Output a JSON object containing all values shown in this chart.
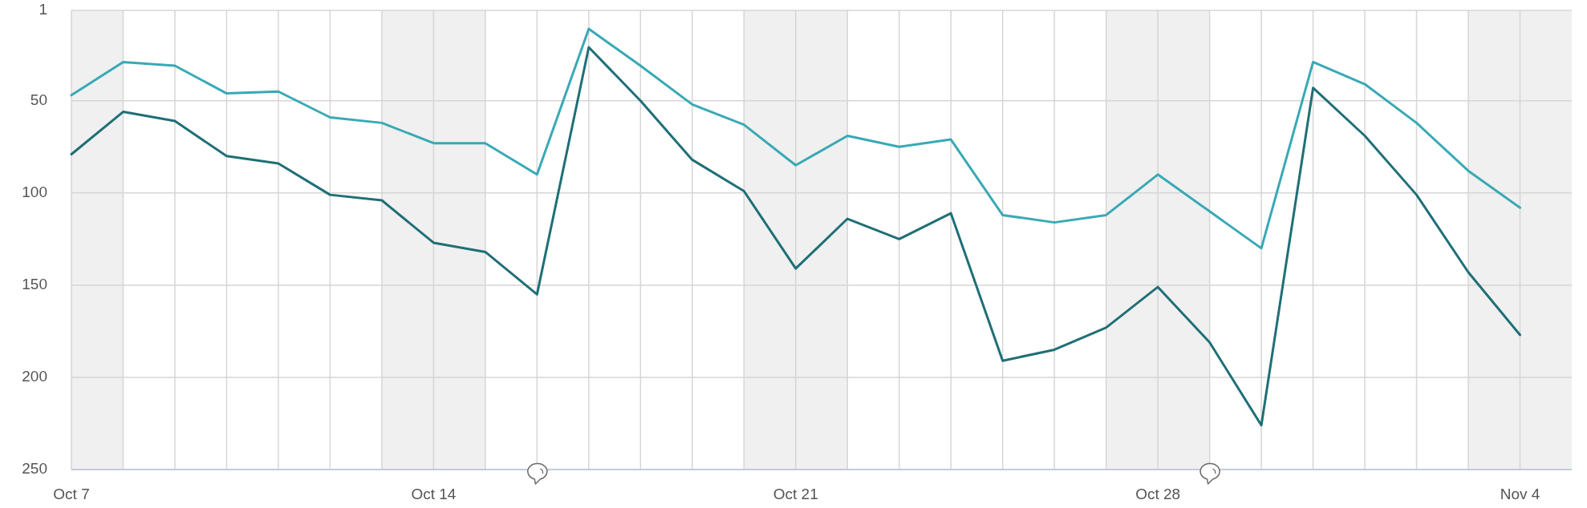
{
  "chart_data": {
    "type": "line",
    "x": [
      "--10-07",
      "--10-08",
      "--10-09",
      "--10-10",
      "--10-11",
      "--10-12",
      "--10-13",
      "--10-14",
      "--10-15",
      "--10-16",
      "--10-17",
      "--10-18",
      "--10-19",
      "--10-20",
      "--10-21",
      "--10-22",
      "--10-23",
      "--10-24",
      "--10-25",
      "--10-26",
      "--10-27",
      "--10-28",
      "--10-29",
      "--10-30",
      "--10-31",
      "--11-01",
      "--11-02",
      "--11-03",
      "--11-04"
    ],
    "series": [
      {
        "color": "#39a9b5",
        "values": [
          47,
          29,
          31,
          46,
          45,
          59,
          62,
          73,
          73,
          90,
          11,
          31,
          52,
          63,
          85,
          69,
          75,
          71,
          112,
          116,
          112,
          90,
          110,
          130,
          29,
          41,
          62,
          88,
          108
        ]
      },
      {
        "color": "#1f6f76",
        "values": [
          79,
          56,
          61,
          80,
          84,
          101,
          104,
          127,
          132,
          155,
          21,
          50,
          82,
          99,
          141,
          114,
          125,
          111,
          191,
          185,
          173,
          151,
          181,
          226,
          43,
          69,
          101,
          143,
          177
        ]
      }
    ],
    "xlim": [
      "--10-07",
      "--11-05"
    ],
    "xticks": [
      {
        "value": "--10-07",
        "label": "Oct 7"
      },
      {
        "value": "--10-08",
        "label": null
      },
      {
        "value": "--10-09",
        "label": null
      },
      {
        "value": "--10-10",
        "label": null
      },
      {
        "value": "--10-11",
        "label": null
      },
      {
        "value": "--10-12",
        "label": null
      },
      {
        "value": "--10-13",
        "label": null
      },
      {
        "value": "--10-14",
        "label": "Oct 14"
      },
      {
        "value": "--10-15",
        "label": null
      },
      {
        "value": "--10-16",
        "label": null
      },
      {
        "value": "--10-17",
        "label": null
      },
      {
        "value": "--10-18",
        "label": null
      },
      {
        "value": "--10-19",
        "label": null
      },
      {
        "value": "--10-20",
        "label": null
      },
      {
        "value": "--10-21",
        "label": "Oct 21"
      },
      {
        "value": "--10-22",
        "label": null
      },
      {
        "value": "--10-23",
        "label": null
      },
      {
        "value": "--10-24",
        "label": null
      },
      {
        "value": "--10-25",
        "label": null
      },
      {
        "value": "--10-26",
        "label": null
      },
      {
        "value": "--10-27",
        "label": null
      },
      {
        "value": "--10-28",
        "label": "Oct 28"
      },
      {
        "value": "--10-29",
        "label": null
      },
      {
        "value": "--10-30",
        "label": null
      },
      {
        "value": "--10-31",
        "label": null
      },
      {
        "value": "--11-01",
        "label": null
      },
      {
        "value": "--11-02",
        "label": null
      },
      {
        "value": "--11-03",
        "label": null
      },
      {
        "value": "--11-04",
        "label": "Nov 4"
      }
    ],
    "ylim": [
      250,
      1
    ],
    "yticks": [
      1,
      50,
      100,
      150,
      200,
      250
    ],
    "grid": true,
    "bands": [
      {
        "axis": "x",
        "from": "--10-07",
        "to": "--10-08",
        "color": "#f0f0f0"
      },
      {
        "axis": "x",
        "from": "--10-13",
        "to": "--10-15",
        "color": "#f0f0f0"
      },
      {
        "axis": "x",
        "from": "--10-20",
        "to": "--10-22",
        "color": "#f0f0f0"
      },
      {
        "axis": "x",
        "from": "--10-27",
        "to": "--10-29",
        "color": "#f0f0f0"
      },
      {
        "axis": "x",
        "from": "--11-03",
        "to": "--11-05",
        "color": "#f0f0f0"
      }
    ]
  }
}
